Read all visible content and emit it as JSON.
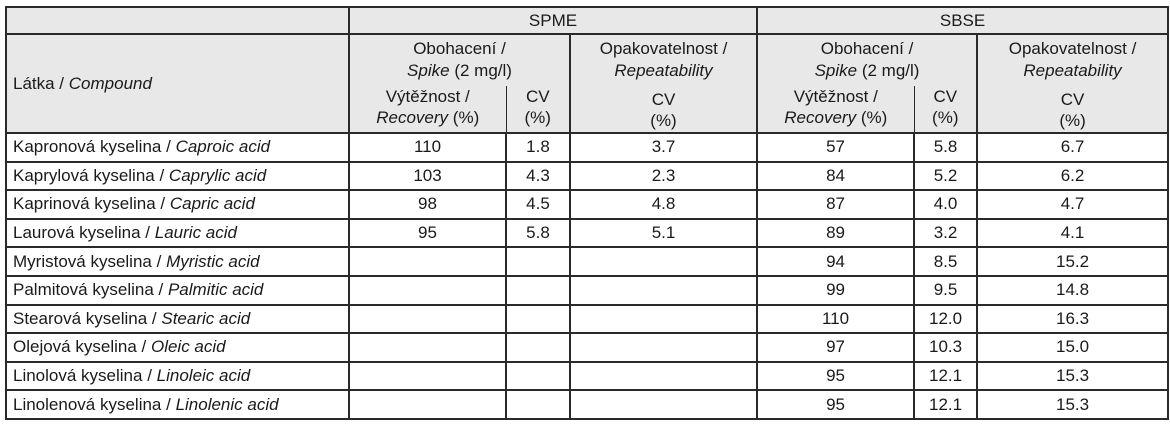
{
  "table": {
    "header": {
      "compound_label": "Látka /",
      "compound_label_en": "Compound",
      "groups": [
        {
          "name": "SPME"
        },
        {
          "name": "SBSE"
        }
      ],
      "spike_label": "Obohacení /",
      "spike_label_en": "Spike",
      "spike_conc": "(2 mg/l)",
      "repeat_label": "Opakovatelnost /",
      "repeat_label_en": "Repeatability",
      "recovery_label": "Výtěžnost /",
      "recovery_label_en": "Recovery",
      "recovery_unit": "(%)",
      "cv_label": "CV",
      "cv_unit": "(%)"
    },
    "rows": [
      {
        "cz": "Kapronová kyselina /",
        "en": "Caproic acid",
        "spme_rec": "110",
        "spme_cv": "1.8",
        "spme_rep": "3.7",
        "sbse_rec": "57",
        "sbse_cv": "5.8",
        "sbse_rep": "6.7"
      },
      {
        "cz": "Kaprylová kyselina /",
        "en": "Caprylic acid",
        "spme_rec": "103",
        "spme_cv": "4.3",
        "spme_rep": "2.3",
        "sbse_rec": "84",
        "sbse_cv": "5.2",
        "sbse_rep": "6.2"
      },
      {
        "cz": "Kaprinová kyselina /",
        "en": "Capric acid",
        "spme_rec": "98",
        "spme_cv": "4.5",
        "spme_rep": "4.8",
        "sbse_rec": "87",
        "sbse_cv": "4.0",
        "sbse_rep": "4.7"
      },
      {
        "cz": "Laurová kyselina /",
        "en": "Lauric acid",
        "spme_rec": "95",
        "spme_cv": "5.8",
        "spme_rep": "5.1",
        "sbse_rec": "89",
        "sbse_cv": "3.2",
        "sbse_rep": "4.1"
      },
      {
        "cz": "Myristová kyselina /",
        "en": "Myristic acid",
        "spme_rec": "",
        "spme_cv": "",
        "spme_rep": "",
        "sbse_rec": "94",
        "sbse_cv": "8.5",
        "sbse_rep": "15.2"
      },
      {
        "cz": "Palmitová kyselina /",
        "en": "Palmitic acid",
        "spme_rec": "",
        "spme_cv": "",
        "spme_rep": "",
        "sbse_rec": "99",
        "sbse_cv": "9.5",
        "sbse_rep": "14.8"
      },
      {
        "cz": "Stearová kyselina /",
        "en": "Stearic acid",
        "spme_rec": "",
        "spme_cv": "",
        "spme_rep": "",
        "sbse_rec": "110",
        "sbse_cv": "12.0",
        "sbse_rep": "16.3"
      },
      {
        "cz": "Olejová kyselina /",
        "en": "Oleic acid",
        "spme_rec": "",
        "spme_cv": "",
        "spme_rep": "",
        "sbse_rec": "97",
        "sbse_cv": "10.3",
        "sbse_rep": "15.0"
      },
      {
        "cz": "Linolová kyselina /",
        "en": "Linoleic acid",
        "spme_rec": "",
        "spme_cv": "",
        "spme_rep": "",
        "sbse_rec": "95",
        "sbse_cv": "12.1",
        "sbse_rep": "15.3"
      },
      {
        "cz": "Linolenová kyselina /",
        "en": "Linolenic acid",
        "spme_rec": "",
        "spme_cv": "",
        "spme_rep": "",
        "sbse_rec": "95",
        "sbse_cv": "12.1",
        "sbse_rep": "15.3"
      }
    ]
  }
}
